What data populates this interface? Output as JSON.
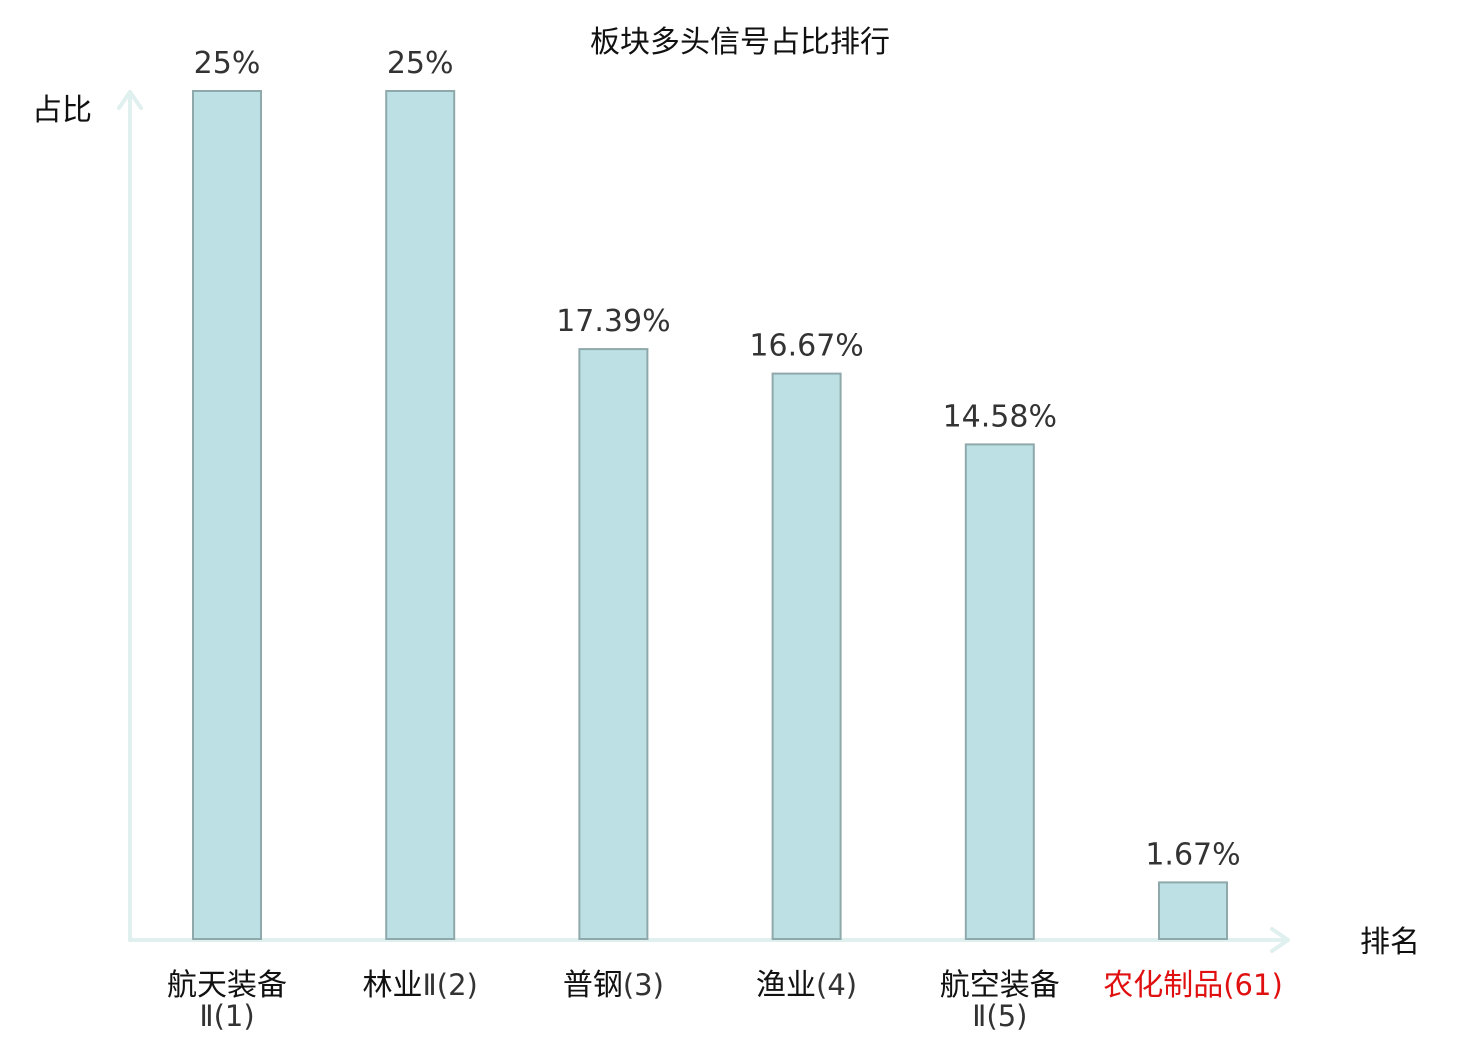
{
  "chart_data": {
    "type": "bar",
    "title": "板块多头信号占比排行",
    "ylabel": "占比",
    "xlabel": "排名",
    "ylim": [
      0,
      25
    ],
    "grid": false,
    "legend": "none",
    "bar_fill": "#bce0e3",
    "bar_stroke": "#8ea8ab",
    "axis_color": "#dff0ee",
    "highlight_color": "#e01010",
    "categories": [
      {
        "name_lines": [
          "航天装备"
        ],
        "rank_line": "Ⅱ(1)",
        "highlight": false
      },
      {
        "name_lines": [
          "林业"
        ],
        "rank_inline": "Ⅱ(2)",
        "highlight": false
      },
      {
        "name_lines": [
          "普钢"
        ],
        "rank_inline": "(3)",
        "highlight": false
      },
      {
        "name_lines": [
          "渔业"
        ],
        "rank_inline": "(4)",
        "highlight": false
      },
      {
        "name_lines": [
          "航空装备"
        ],
        "rank_line": "Ⅱ(5)",
        "highlight": false
      },
      {
        "name_lines": [
          "农化制品"
        ],
        "rank_inline": "(61)",
        "highlight": true
      }
    ],
    "values": [
      25,
      25,
      17.39,
      16.67,
      14.58,
      1.67
    ],
    "value_labels": [
      "25%",
      "25%",
      "17.39%",
      "16.67%",
      "14.58%",
      "1.67%"
    ]
  }
}
